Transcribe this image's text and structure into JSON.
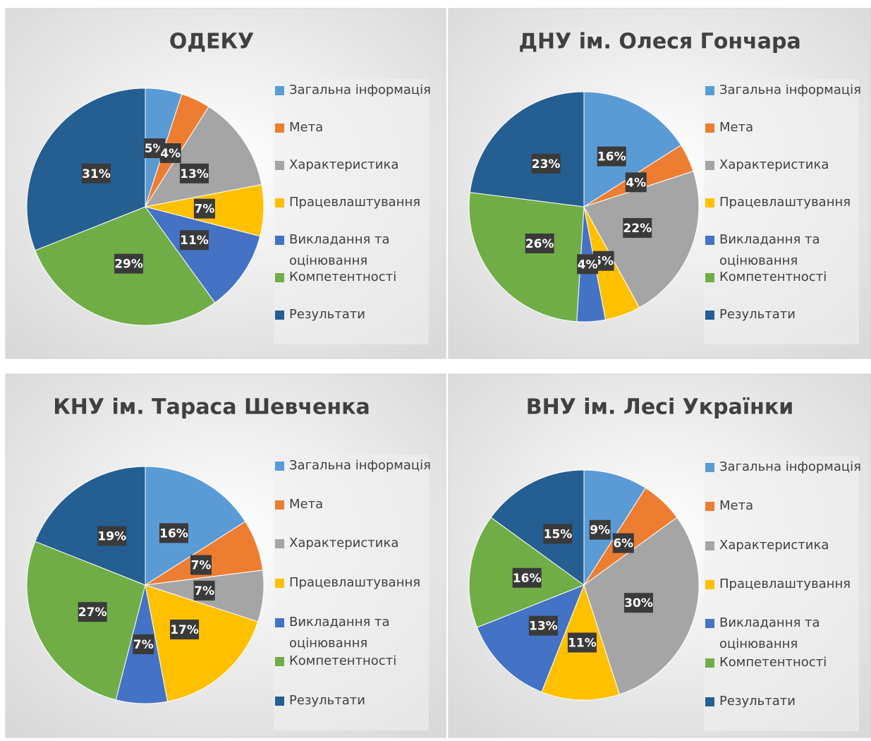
{
  "chart_data": [
    {
      "type": "pie",
      "title": "ОДЕКУ",
      "categories": [
        "Загальна інформація",
        "Мета",
        "Характеристика",
        "Працевлаштування",
        "Викладання та оцінювання",
        "Компетентності",
        "Результати"
      ],
      "values": [
        5,
        4,
        13,
        7,
        11,
        29,
        31
      ],
      "value_labels": [
        "5%",
        "4%",
        "13%",
        "7%",
        "11%",
        "29%",
        "31%"
      ],
      "colors": [
        "#5b9bd5",
        "#ed7d31",
        "#a5a5a5",
        "#ffc000",
        "#4472c4",
        "#70ad47",
        "#255e91"
      ]
    },
    {
      "type": "pie",
      "title": "ДНУ ім. Олеся Гончара",
      "categories": [
        "Загальна інформація",
        "Мета",
        "Характеристика",
        "Працевлаштування",
        "Викладання та оцінювання",
        "Компетентності",
        "Результати"
      ],
      "values": [
        16,
        4,
        22,
        5,
        4,
        26,
        23
      ],
      "value_labels": [
        "16%",
        "4%",
        "22%",
        "5%",
        "4%",
        "26%",
        "23%"
      ],
      "colors": [
        "#5b9bd5",
        "#ed7d31",
        "#a5a5a5",
        "#ffc000",
        "#4472c4",
        "#70ad47",
        "#255e91"
      ]
    },
    {
      "type": "pie",
      "title": "КНУ ім. Тараса Шевченка",
      "categories": [
        "Загальна інформація",
        "Мета",
        "Характеристика",
        "Працевлаштування",
        "Викладання та оцінювання",
        "Компетентності",
        "Результати"
      ],
      "values": [
        16,
        7,
        7,
        17,
        7,
        27,
        19
      ],
      "value_labels": [
        "16%",
        "7%",
        "7%",
        "17%",
        "7%",
        "27%",
        "19%"
      ],
      "colors": [
        "#5b9bd5",
        "#ed7d31",
        "#a5a5a5",
        "#ffc000",
        "#4472c4",
        "#70ad47",
        "#255e91"
      ]
    },
    {
      "type": "pie",
      "title": "ВНУ ім. Лесі Українки",
      "categories": [
        "Загальна інформація",
        "Мета",
        "Характеристика",
        "Працевлаштування",
        "Викладання та оцінювання",
        "Компетентності",
        "Результати"
      ],
      "values": [
        9,
        6,
        30,
        11,
        13,
        16,
        15
      ],
      "value_labels": [
        "9%",
        "6%",
        "30%",
        "11%",
        "13%",
        "16%",
        "15%"
      ],
      "colors": [
        "#5b9bd5",
        "#ed7d31",
        "#a5a5a5",
        "#ffc000",
        "#4472c4",
        "#70ad47",
        "#255e91"
      ]
    }
  ]
}
